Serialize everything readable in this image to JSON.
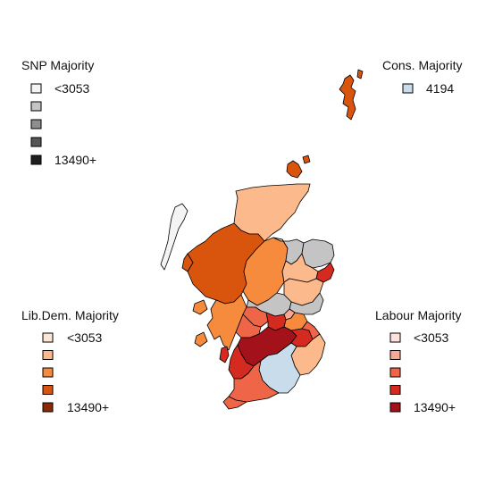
{
  "map": {
    "legends": {
      "snp": {
        "title": "SNP Majority",
        "labels": [
          "<3053",
          "",
          "",
          "",
          "13490+"
        ],
        "colors": [
          "#f4f4f4",
          "#c4c4c4",
          "#8e8e8e",
          "#565656",
          "#1f1f1f"
        ]
      },
      "cons": {
        "title": "Cons. Majority",
        "labels": [
          "4194"
        ],
        "colors": [
          "#c8dcec"
        ]
      },
      "libdem": {
        "title": "Lib.Dem. Majority",
        "labels": [
          "<3053",
          "",
          "",
          "",
          "13490+"
        ],
        "colors": [
          "#fde7d4",
          "#fcb98b",
          "#f68b3e",
          "#d9540d",
          "#8c2b03"
        ]
      },
      "labour": {
        "title": "Labour Majority",
        "labels": [
          "<3053",
          "",
          "",
          "",
          "13490+"
        ],
        "colors": [
          "#fde2de",
          "#f7a993",
          "#ef6548",
          "#d52a20",
          "#a3121b"
        ]
      }
    },
    "regions": [
      {
        "name": "shetland",
        "party": "libdem",
        "band": 3
      },
      {
        "name": "orkney",
        "party": "libdem",
        "band": 3
      },
      {
        "name": "caithness-sutherland",
        "party": "libdem",
        "band": 1
      },
      {
        "name": "ross-skye-lochaber",
        "party": "libdem",
        "band": 3
      },
      {
        "name": "inverness-nairn",
        "party": "libdem",
        "band": 2
      },
      {
        "name": "moray",
        "party": "snp",
        "band": 1
      },
      {
        "name": "banff-buchan",
        "party": "snp",
        "band": 1
      },
      {
        "name": "gordon",
        "party": "libdem",
        "band": 1
      },
      {
        "name": "aberdeen-north",
        "party": "labour",
        "band": 3
      },
      {
        "name": "west-aberdeenshire",
        "party": "libdem",
        "band": 1
      },
      {
        "name": "angus",
        "party": "snp",
        "band": 1
      },
      {
        "name": "perth",
        "party": "snp",
        "band": 1
      },
      {
        "name": "argyll-bute",
        "party": "libdem",
        "band": 2
      },
      {
        "name": "ochil",
        "party": "labour",
        "band": 2
      },
      {
        "name": "dundee",
        "party": "labour",
        "band": 1
      },
      {
        "name": "fife-ne",
        "party": "libdem",
        "band": 2
      },
      {
        "name": "fife-central",
        "party": "labour",
        "band": 3
      },
      {
        "name": "stirling",
        "party": "labour",
        "band": 2
      },
      {
        "name": "glasgow-area",
        "party": "labour",
        "band": 4
      },
      {
        "name": "edinburgh",
        "party": "labour",
        "band": 3
      },
      {
        "name": "east-lothian",
        "party": "labour",
        "band": 2
      },
      {
        "name": "berwickshire",
        "party": "libdem",
        "band": 1
      },
      {
        "name": "dumfriesshire",
        "party": "cons",
        "band": 0
      },
      {
        "name": "ayrshire",
        "party": "labour",
        "band": 3
      },
      {
        "name": "dumfries-galloway",
        "party": "labour",
        "band": 2
      },
      {
        "name": "arran",
        "party": "labour",
        "band": 3
      },
      {
        "name": "western-isles",
        "party": "snp",
        "band": 0
      }
    ]
  }
}
